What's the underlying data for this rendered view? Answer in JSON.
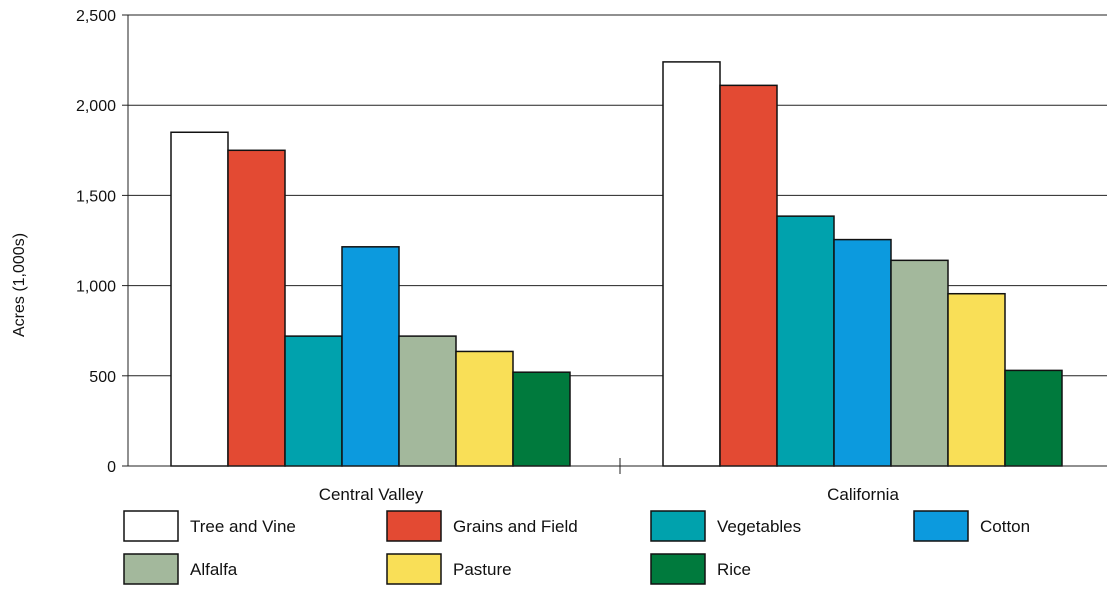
{
  "chart_data": {
    "type": "bar",
    "title": "",
    "xlabel": "",
    "ylabel": "Acres (1,000s)",
    "ylim": [
      0,
      2500
    ],
    "yticks": [
      0,
      500,
      1000,
      1500,
      2000,
      2500
    ],
    "ytick_labels": [
      "0",
      "500",
      "1,000",
      "1,500",
      "2,000",
      "2,500"
    ],
    "categories": [
      "Central Valley",
      "California"
    ],
    "grid": "horizontal",
    "legend_position": "bottom",
    "series": [
      {
        "name": "Tree and Vine",
        "color": "#ffffff",
        "values": [
          1850,
          2240
        ]
      },
      {
        "name": "Grains and Field",
        "color": "#e34a33",
        "values": [
          1750,
          2110
        ]
      },
      {
        "name": "Vegetables",
        "color": "#00a2ad",
        "values": [
          720,
          1385
        ]
      },
      {
        "name": "Cotton",
        "color": "#0c9ade",
        "values": [
          1215,
          1255
        ]
      },
      {
        "name": "Alfalfa",
        "color": "#a3b89c",
        "values": [
          720,
          1140
        ]
      },
      {
        "name": "Pasture",
        "color": "#f9df57",
        "values": [
          635,
          955
        ]
      },
      {
        "name": "Rice",
        "color": "#007a3d",
        "values": [
          520,
          530
        ]
      }
    ]
  }
}
